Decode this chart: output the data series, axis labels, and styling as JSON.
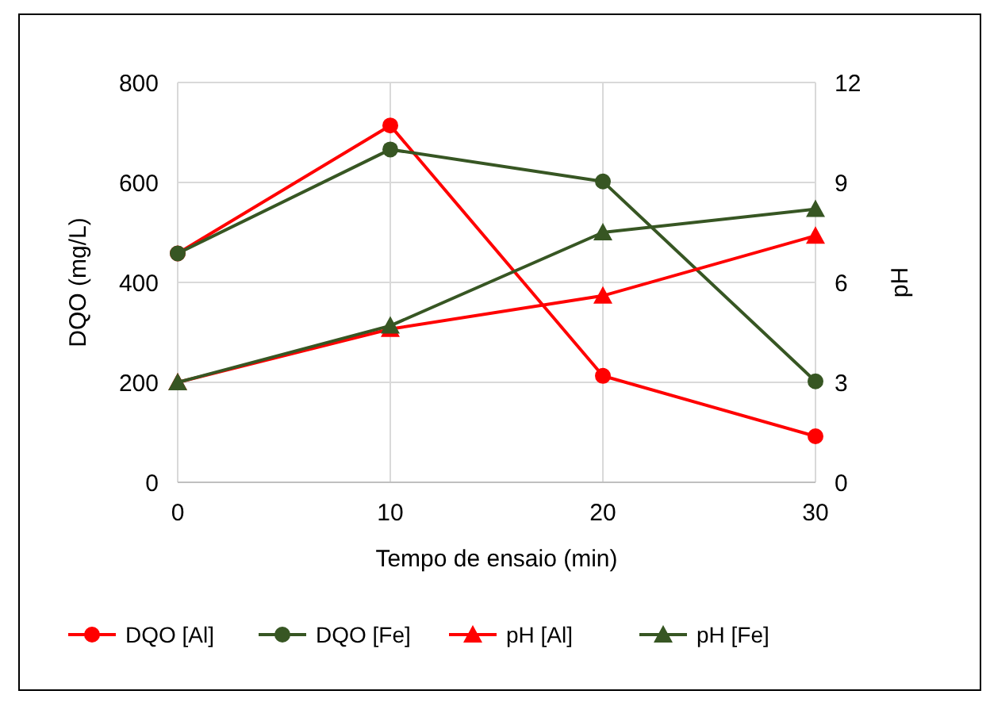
{
  "chart_data": {
    "type": "line",
    "xlabel": "Tempo de ensaio (min)",
    "ylabel": "DQO (mg/L)",
    "y2label": "pH",
    "x": [
      0,
      10,
      20,
      30
    ],
    "xlim": [
      0,
      30
    ],
    "xticks": [
      0,
      10,
      20,
      30
    ],
    "ylim": [
      0,
      800
    ],
    "yticks": [
      0,
      200,
      400,
      600,
      800
    ],
    "y2lim": [
      0,
      12
    ],
    "y2ticks": [
      0,
      3,
      6,
      9,
      12
    ],
    "grid": true,
    "legend": "bottom",
    "line_style": "solid",
    "series": [
      {
        "name": "DQO [Al]",
        "color": "#ff0000",
        "marker": "circle",
        "values": [
          458,
          714,
          213,
          92
        ]
      },
      {
        "name": "DQO [Fe]",
        "color": "#375623",
        "marker": "circle",
        "values": [
          458,
          666,
          602,
          202
        ]
      },
      {
        "name": "pH [Al]",
        "color": "#ff0000",
        "marker": "triangle",
        "axis": "y2",
        "values": [
          3.0,
          4.6,
          5.6,
          7.4
        ]
      },
      {
        "name": "pH [Fe]",
        "color": "#375623",
        "marker": "triangle",
        "axis": "y2",
        "values": [
          3.0,
          4.7,
          7.5,
          8.2
        ]
      }
    ]
  }
}
